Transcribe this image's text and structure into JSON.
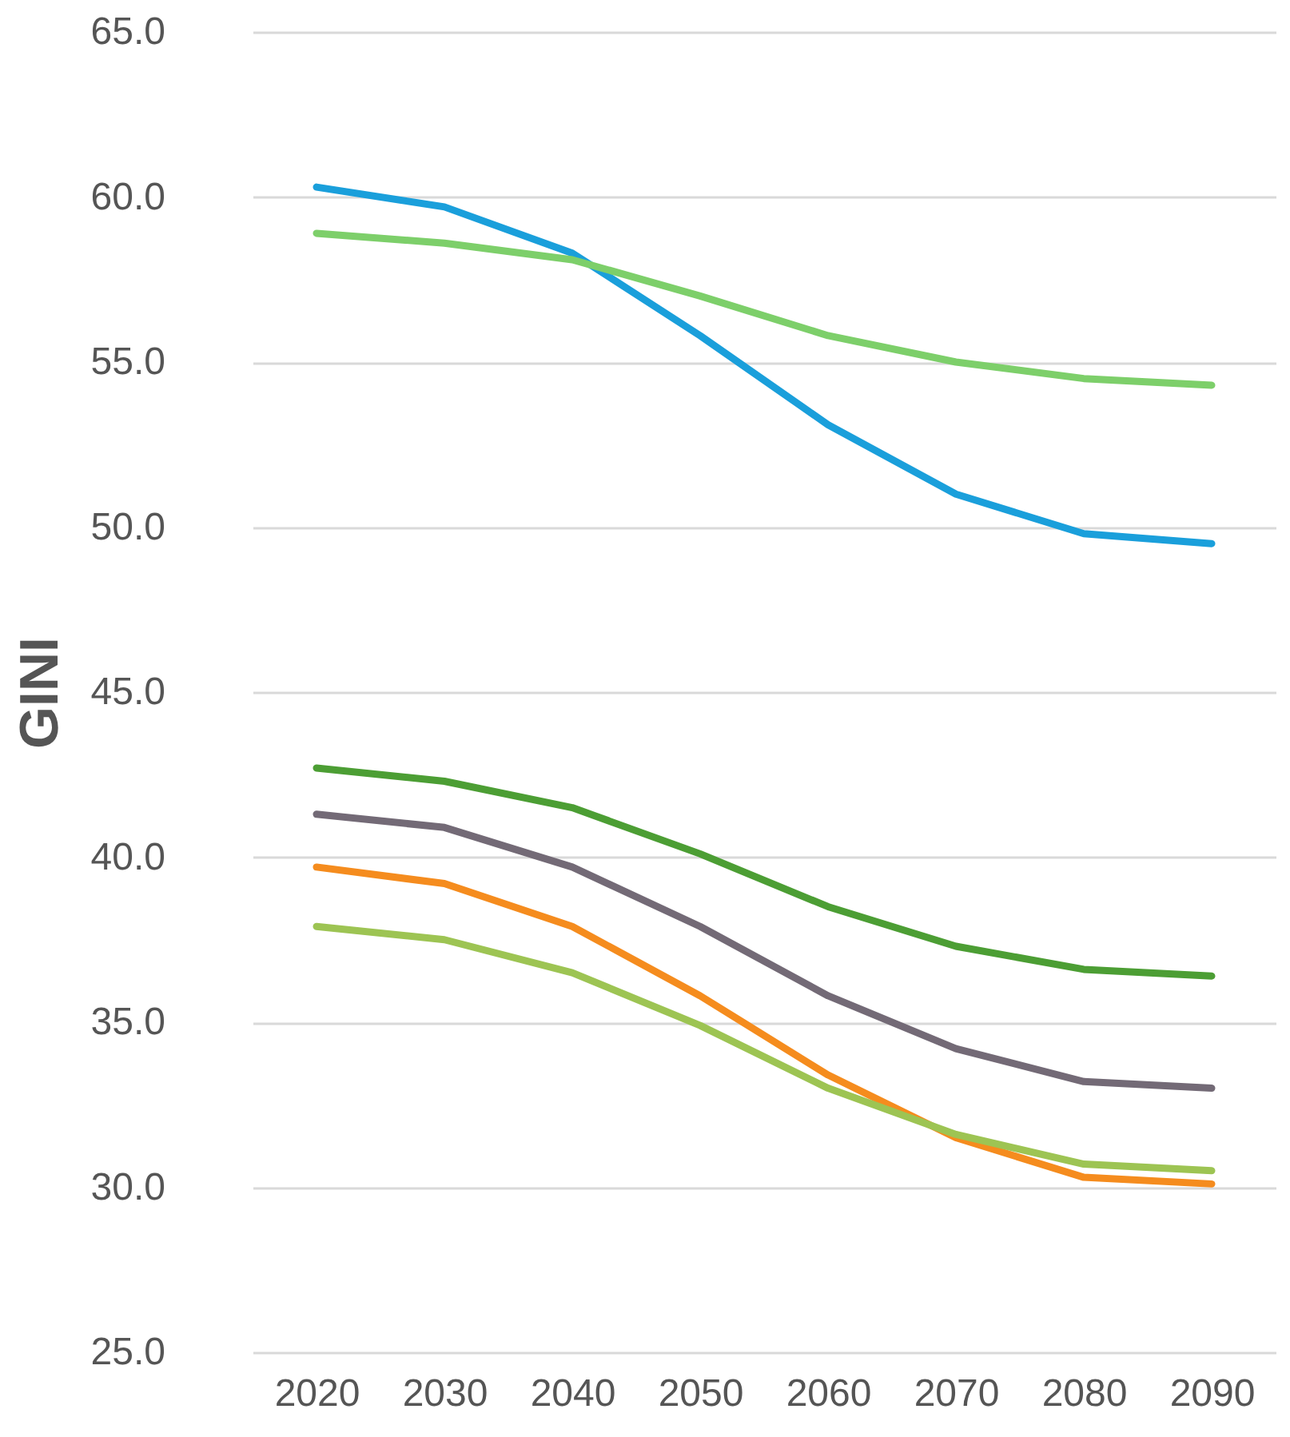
{
  "chart_data": {
    "type": "line",
    "ylabel": "GINI",
    "categories": [
      "2020",
      "2030",
      "2040",
      "2050",
      "2060",
      "2070",
      "2080",
      "2090"
    ],
    "series": [
      {
        "color": "#1a9fdb",
        "values": [
          60.3,
          59.7,
          58.3,
          55.8,
          53.1,
          51.0,
          49.8,
          49.5
        ]
      },
      {
        "color": "#7dcf6a",
        "values": [
          58.9,
          58.6,
          58.1,
          57.0,
          55.8,
          55.0,
          54.5,
          54.3
        ]
      },
      {
        "color": "#4c9e34",
        "values": [
          42.7,
          42.3,
          41.5,
          40.1,
          38.5,
          37.3,
          36.6,
          36.4
        ]
      },
      {
        "color": "#736a76",
        "values": [
          41.3,
          40.9,
          39.7,
          37.9,
          35.8,
          34.2,
          33.2,
          33.0
        ]
      },
      {
        "color": "#f58c1e",
        "values": [
          39.7,
          39.2,
          37.9,
          35.8,
          33.4,
          31.5,
          30.3,
          30.1
        ]
      },
      {
        "color": "#9dc453",
        "values": [
          37.9,
          37.5,
          36.5,
          34.9,
          33.0,
          31.6,
          30.7,
          30.5
        ]
      }
    ],
    "ylim": [
      25,
      65
    ],
    "yticks": [
      {
        "value": 25,
        "label": "25.0"
      },
      {
        "value": 30,
        "label": "30.0"
      },
      {
        "value": 35,
        "label": "35.0"
      },
      {
        "value": 40,
        "label": "40.0"
      },
      {
        "value": 45,
        "label": "45.0"
      },
      {
        "value": 50,
        "label": "50.0"
      },
      {
        "value": 55,
        "label": "55.0"
      },
      {
        "value": 60,
        "label": "60.0"
      },
      {
        "value": 65,
        "label": "65.0"
      }
    ],
    "grid": "y",
    "marker": "none",
    "line_style": "solid"
  }
}
